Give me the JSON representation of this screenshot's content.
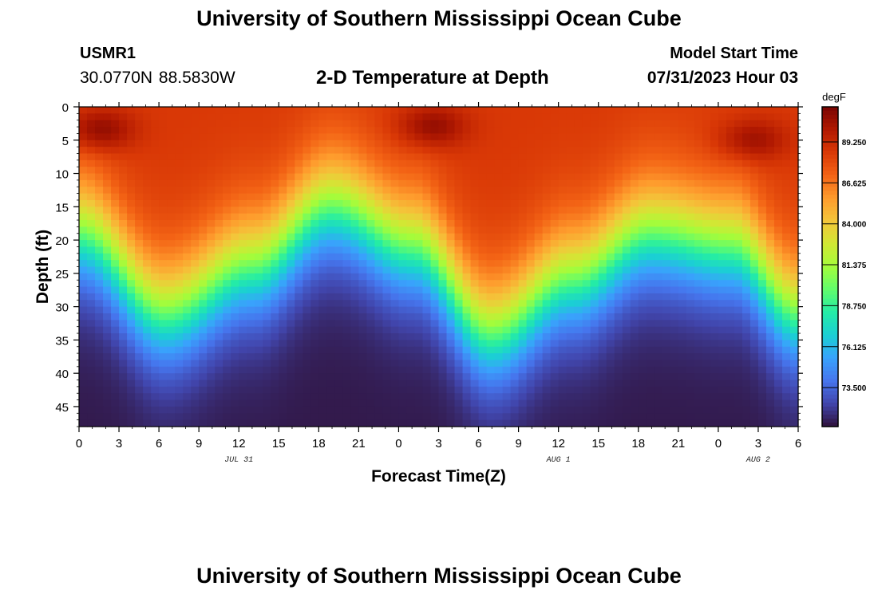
{
  "header": {
    "title": "University of Southern Mississippi Ocean Cube",
    "station": "USMR1",
    "coordinates": "30.0770N  88.5830W",
    "subtitle": "2-D Temperature at Depth",
    "model_start_label": "Model Start Time",
    "model_start_value": "07/31/2023 Hour 03"
  },
  "footer": {
    "title": "University of Southern Mississippi Ocean Cube"
  },
  "chart_data": {
    "type": "heatmap",
    "title": "2-D Temperature at Depth",
    "xlabel": "Forecast Time(Z)",
    "ylabel": "Depth (ft)",
    "x_range_hours": [
      0,
      54
    ],
    "y_range_ft": [
      0,
      48
    ],
    "y_inverted": true,
    "x_ticks": [
      "0",
      "3",
      "6",
      "9",
      "12",
      "15",
      "18",
      "21",
      "0",
      "3",
      "6",
      "9",
      "12",
      "15",
      "18",
      "21",
      "0",
      "3",
      "6"
    ],
    "y_ticks": [
      0,
      5,
      10,
      15,
      20,
      25,
      30,
      35,
      40,
      45
    ],
    "date_labels": [
      {
        "label": "JUL 31",
        "hour": 12
      },
      {
        "label": "AUG 1",
        "hour": 36
      },
      {
        "label": "AUG 2",
        "hour": 51
      }
    ],
    "colorbar": {
      "unit": "degF",
      "range": [
        71.0,
        91.5
      ],
      "ticks": [
        89.25,
        86.625,
        84.0,
        81.375,
        78.75,
        76.125,
        73.5
      ],
      "tick_labels": [
        "89.250",
        "86.625",
        "84.000",
        "81.375",
        "78.750",
        "76.125",
        "73.500"
      ],
      "colormap": [
        "#30123b",
        "#4145ab",
        "#4675ed",
        "#39a2fc",
        "#1bcfd4",
        "#24eca6",
        "#61fc6c",
        "#a4fc3b",
        "#d1e834",
        "#f3c63a",
        "#fe9b2d",
        "#f36315",
        "#d93806",
        "#b11901",
        "#7a0402"
      ]
    },
    "thermocline_depth_ft": [
      {
        "hour": 0,
        "depth": 19
      },
      {
        "hour": 6.5,
        "depth": 31
      },
      {
        "hour": 13,
        "depth": 24
      },
      {
        "hour": 19,
        "depth": 15
      },
      {
        "hour": 25,
        "depth": 21
      },
      {
        "hour": 31,
        "depth": 34
      },
      {
        "hour": 37,
        "depth": 26
      },
      {
        "hour": 43,
        "depth": 19
      },
      {
        "hour": 49,
        "depth": 21
      },
      {
        "hour": 54,
        "depth": 31
      }
    ],
    "surface_temperature_degF": 88.6,
    "bottom_temperature_degF": 71.2,
    "warm_cores": [
      {
        "hour": 1.5,
        "depth_ft": 3.5,
        "degF": 91.2
      },
      {
        "hour": 26.5,
        "depth_ft": 3.0,
        "degF": 91.0
      },
      {
        "hour": 50.5,
        "depth_ft": 5.0,
        "degF": 90.8
      }
    ]
  }
}
